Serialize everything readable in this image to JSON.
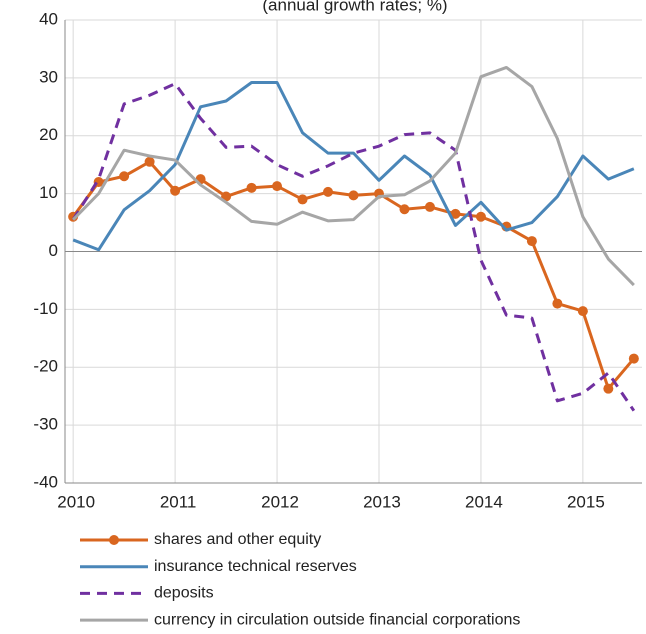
{
  "chart_data": {
    "type": "line",
    "title": "(annual growth rates; %)",
    "x": [
      2010,
      2010.25,
      2010.5,
      2010.75,
      2011,
      2011.25,
      2011.5,
      2011.75,
      2012,
      2012.25,
      2012.5,
      2012.75,
      2013,
      2013.25,
      2013.5,
      2013.75,
      2014,
      2014.25,
      2014.5,
      2014.75,
      2015,
      2015.25,
      2015.5
    ],
    "xlim": [
      2009.92,
      2015.58
    ],
    "xticks": [
      2010,
      2011,
      2012,
      2013,
      2014,
      2015
    ],
    "ylim": [
      -40,
      40
    ],
    "yticks": [
      -40,
      -30,
      -20,
      -10,
      0,
      10,
      20,
      30,
      40
    ],
    "grid": true,
    "series": [
      {
        "name": "shares and other equity",
        "color": "#d9661f",
        "style": "solid",
        "markers": true,
        "values": [
          6,
          12,
          13,
          15.5,
          10.5,
          12.5,
          9.5,
          11,
          11.3,
          9,
          10.3,
          9.7,
          10,
          7.3,
          7.7,
          6.5,
          6,
          4.3,
          1.8,
          -9,
          -10.3,
          -23.7,
          -18.5
        ]
      },
      {
        "name": "insurance technical reserves",
        "color": "#4a86b8",
        "style": "solid",
        "markers": false,
        "values": [
          2,
          0.3,
          7.2,
          10.5,
          15,
          25,
          26,
          29.2,
          29.2,
          20.5,
          17,
          17,
          12.3,
          16.5,
          13.2,
          4.5,
          8.5,
          3.7,
          5,
          9.5,
          16.5,
          12.5,
          14.3
        ]
      },
      {
        "name": "deposits",
        "color": "#7030a0",
        "style": "dashed",
        "markers": false,
        "values": [
          5.5,
          12.5,
          25.5,
          27,
          29,
          23,
          18,
          18.2,
          15,
          13,
          14.8,
          17,
          18.2,
          20.2,
          20.5,
          17.5,
          -1.5,
          -11,
          -11.5,
          -25.8,
          -24.5,
          -21,
          -27.5
        ]
      },
      {
        "name": "currency in circulation outside financial corporations",
        "color": "#a6a6a6",
        "style": "solid",
        "markers": false,
        "values": [
          5.5,
          10,
          17.5,
          16.5,
          15.8,
          11.5,
          8.5,
          5.2,
          4.7,
          6.8,
          5.3,
          5.5,
          9.5,
          9.8,
          12.2,
          17,
          30.2,
          31.8,
          28.5,
          19.5,
          6,
          -1.3,
          -5.8
        ]
      }
    ]
  }
}
